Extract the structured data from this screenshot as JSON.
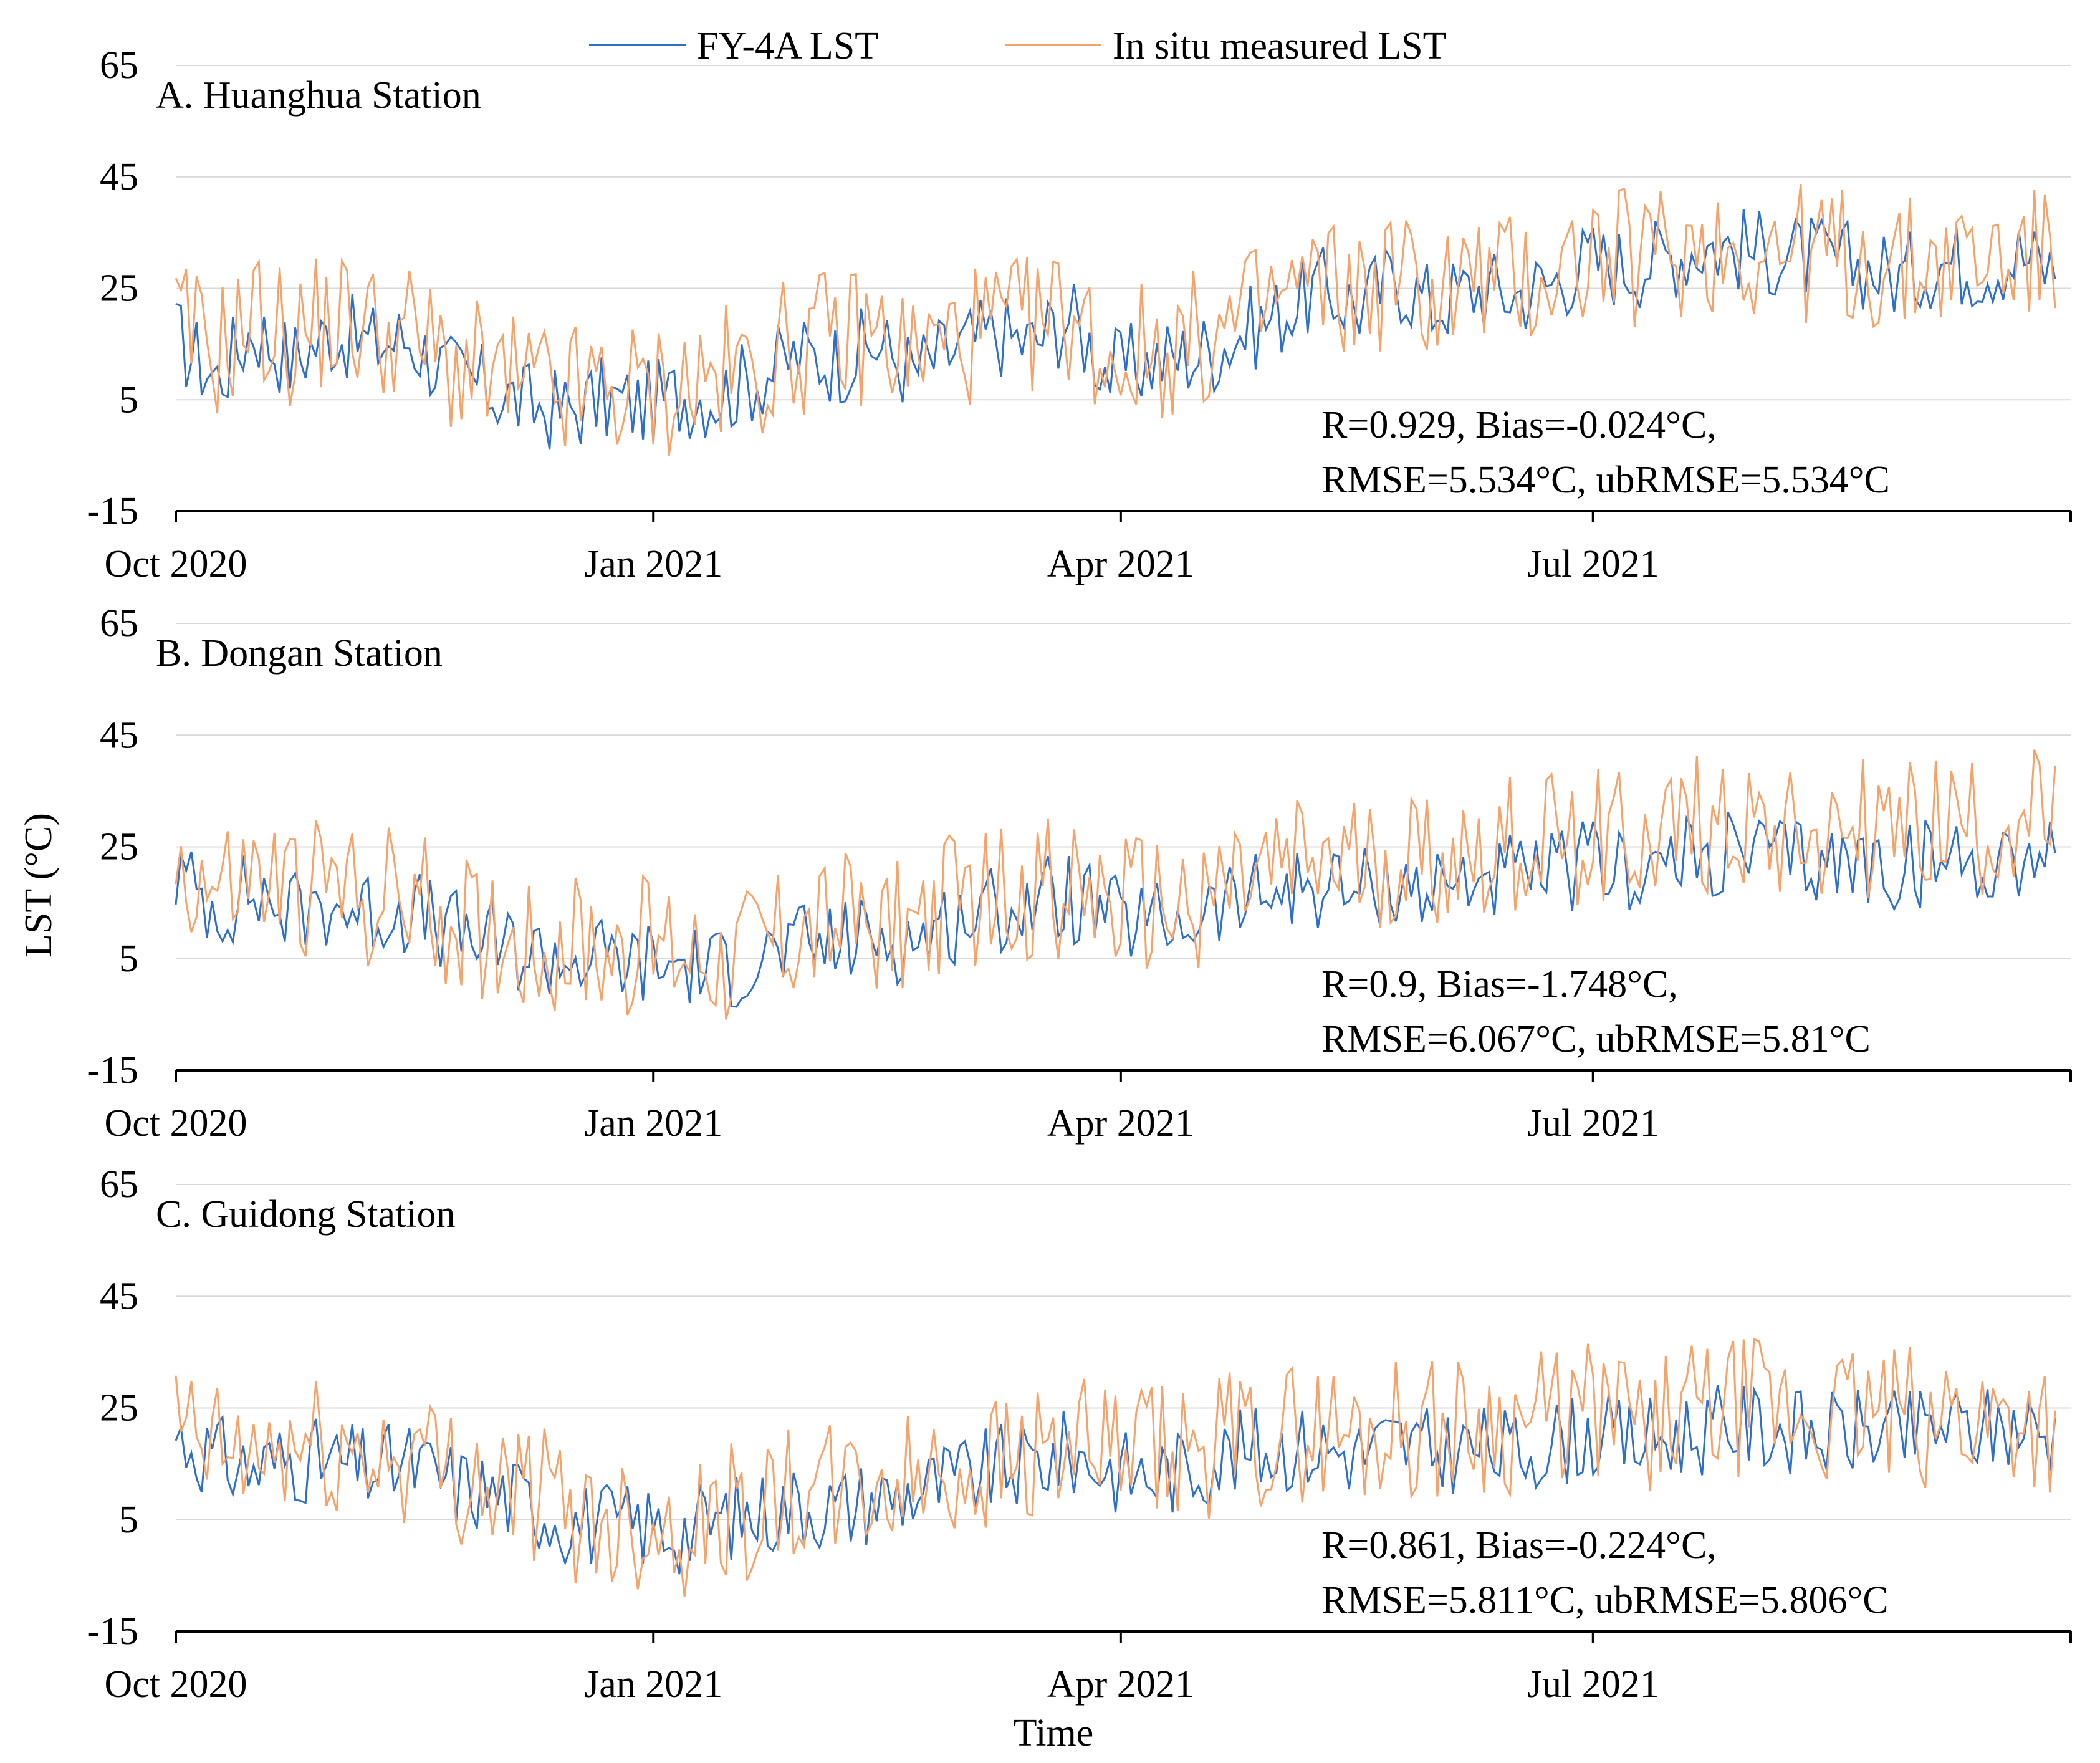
{
  "legend": {
    "fy4a": "FY-4A LST",
    "insitu": "In situ measured LST"
  },
  "colors": {
    "fy4a": "#2e6fc8",
    "insitu": "#f4a36b",
    "grid": "#d9d9d9",
    "axis": "#000000"
  },
  "ylabel": "LST (°C)",
  "xlabel": "Time",
  "chart_data": [
    {
      "type": "line",
      "title": "A. Huanghua  Station",
      "ylim": [
        -15,
        65
      ],
      "yticks": [
        "65",
        "45",
        "25",
        "5",
        "-15"
      ],
      "xticks": [
        "Oct 2020",
        "Jan 2021",
        "Apr 2021",
        "Jul 2021"
      ],
      "stats": [
        "R=0.929, Bias=-0.024°C,",
        "RMSE=5.534°C, ubRMSE=5.534°C"
      ],
      "series": [
        {
          "name": "FY-4A LST",
          "x_days": [
            0,
            8,
            15,
            22,
            30,
            38,
            45,
            52,
            60,
            68,
            75,
            82,
            90,
            98,
            105,
            112,
            120,
            128,
            135,
            142,
            150,
            158,
            165,
            172,
            180,
            188,
            195,
            200,
            205,
            212,
            220,
            228,
            235,
            242,
            250,
            258,
            265,
            272,
            280,
            288,
            295,
            302,
            310,
            318,
            325,
            332,
            340,
            348,
            355,
            362
          ],
          "values": [
            16,
            9,
            18,
            12,
            17,
            15,
            16,
            10,
            7,
            4,
            3,
            5,
            4,
            6,
            6,
            9,
            13,
            12,
            15,
            10,
            14,
            17,
            15,
            20,
            10,
            12,
            13,
            14,
            17,
            20,
            25,
            22,
            27,
            22,
            25,
            24,
            26,
            30,
            29,
            31,
            33,
            32,
            31,
            30,
            29,
            27,
            30,
            29,
            31,
            28
          ]
        },
        {
          "name": "In situ measured LST",
          "x_days": [
            0,
            8,
            15,
            22,
            30,
            38,
            45,
            52,
            60,
            68,
            75,
            82,
            90,
            98,
            105,
            112,
            120,
            128,
            135,
            142,
            150,
            158,
            165,
            172,
            180,
            188,
            195,
            200,
            205,
            212,
            220,
            228,
            235,
            242,
            250,
            258,
            265,
            272,
            280,
            288,
            295,
            302,
            310,
            318,
            325,
            332,
            340,
            348,
            355,
            362
          ],
          "values": [
            18,
            14,
            20,
            16,
            20,
            18,
            17,
            12,
            9,
            7,
            6,
            7,
            6,
            8,
            9,
            11,
            15,
            16,
            17,
            13,
            16,
            18,
            18,
            21,
            12,
            14,
            15,
            16,
            19,
            23,
            26,
            24,
            28,
            24,
            27,
            26,
            28,
            31,
            30,
            32,
            33,
            32,
            32,
            31,
            30,
            28,
            31,
            30,
            32,
            29
          ]
        }
      ]
    },
    {
      "type": "line",
      "title": "B. Dongan Station",
      "ylim": [
        -15,
        65
      ],
      "yticks": [
        "65",
        "45",
        "25",
        "5",
        "-15"
      ],
      "xticks": [
        "Oct 2020",
        "Jan 2021",
        "Apr 2021",
        "Jul 2021"
      ],
      "stats": [
        "R=0.9, Bias=-1.748°C,",
        "RMSE=6.067°C, ubRMSE=5.81°C"
      ],
      "series": [
        {
          "name": "FY-4A LST",
          "x_days": [
            0,
            8,
            15,
            22,
            30,
            38,
            45,
            52,
            60,
            68,
            75,
            82,
            90,
            98,
            105,
            112,
            120,
            128,
            135,
            142,
            150,
            158,
            165,
            172,
            180,
            188,
            195,
            200,
            205,
            212,
            220,
            228,
            235,
            242,
            250,
            258,
            265,
            272,
            280,
            288,
            295,
            302,
            310,
            318,
            325,
            332,
            340,
            348,
            355,
            362
          ],
          "values": [
            20,
            14,
            17,
            13,
            15,
            13,
            14,
            10,
            8,
            6,
            5,
            5,
            4,
            4,
            3,
            5,
            7,
            8,
            9,
            8,
            12,
            14,
            15,
            16,
            12,
            11,
            12,
            14,
            15,
            17,
            18,
            17,
            19,
            17,
            20,
            19,
            20,
            22,
            21,
            22,
            23,
            24,
            23,
            22,
            22,
            21,
            23,
            22,
            24,
            23
          ]
        },
        {
          "name": "In situ measured LST",
          "x_days": [
            0,
            8,
            15,
            22,
            30,
            38,
            45,
            52,
            60,
            68,
            75,
            82,
            90,
            98,
            105,
            112,
            120,
            128,
            135,
            142,
            150,
            158,
            165,
            172,
            180,
            188,
            195,
            200,
            205,
            212,
            220,
            228,
            235,
            242,
            250,
            258,
            265,
            272,
            280,
            288,
            295,
            302,
            310,
            318,
            325,
            332,
            340,
            348,
            355,
            362
          ],
          "values": [
            22,
            17,
            19,
            17,
            18,
            16,
            16,
            12,
            10,
            8,
            7,
            7,
            7,
            7,
            6,
            8,
            10,
            11,
            12,
            11,
            15,
            16,
            17,
            18,
            14,
            14,
            15,
            17,
            18,
            20,
            22,
            21,
            23,
            22,
            24,
            25,
            26,
            28,
            27,
            28,
            29,
            30,
            29,
            29,
            28,
            27,
            29,
            28,
            30,
            29
          ]
        }
      ]
    },
    {
      "type": "line",
      "title": "C. Guidong Station",
      "ylim": [
        -15,
        65
      ],
      "yticks": [
        "65",
        "45",
        "25",
        "5",
        "-15"
      ],
      "xticks": [
        "Oct 2020",
        "Jan 2021",
        "Apr 2021",
        "Jul 2021"
      ],
      "stats": [
        "R=0.861, Bias=-0.224°C,",
        "RMSE=5.811°C, ubRMSE=5.806°C"
      ],
      "series": [
        {
          "name": "FY-4A LST",
          "x_days": [
            0,
            8,
            15,
            22,
            30,
            38,
            45,
            52,
            60,
            68,
            75,
            82,
            90,
            98,
            105,
            112,
            120,
            128,
            135,
            142,
            150,
            158,
            165,
            172,
            180,
            188,
            195,
            200,
            205,
            212,
            220,
            228,
            235,
            242,
            250,
            258,
            265,
            272,
            280,
            288,
            295,
            302,
            310,
            318,
            325,
            332,
            340,
            348,
            355,
            362
          ],
          "values": [
            20,
            16,
            14,
            16,
            15,
            14,
            15,
            12,
            10,
            8,
            5,
            4,
            4,
            3,
            5,
            6,
            8,
            7,
            9,
            10,
            12,
            14,
            15,
            17,
            14,
            13,
            14,
            16,
            17,
            18,
            18,
            17,
            19,
            17,
            18,
            17,
            19,
            20,
            19,
            20,
            21,
            22,
            21,
            20,
            21,
            20,
            22,
            21,
            22,
            20
          ]
        },
        {
          "name": "In situ measured LST",
          "x_days": [
            0,
            8,
            15,
            22,
            30,
            38,
            45,
            52,
            60,
            68,
            75,
            82,
            90,
            98,
            105,
            112,
            120,
            128,
            135,
            142,
            150,
            158,
            165,
            172,
            180,
            188,
            195,
            200,
            205,
            212,
            220,
            228,
            235,
            242,
            250,
            258,
            265,
            272,
            280,
            288,
            295,
            302,
            310,
            318,
            325,
            332,
            340,
            348,
            355,
            362
          ],
          "values": [
            21,
            17,
            16,
            18,
            17,
            16,
            17,
            14,
            12,
            10,
            7,
            5,
            5,
            4,
            6,
            7,
            9,
            9,
            11,
            12,
            14,
            16,
            17,
            18,
            16,
            16,
            17,
            18,
            19,
            20,
            21,
            20,
            22,
            21,
            22,
            22,
            23,
            24,
            23,
            23,
            24,
            25,
            24,
            23,
            24,
            23,
            24,
            23,
            24,
            22
          ]
        }
      ]
    }
  ]
}
